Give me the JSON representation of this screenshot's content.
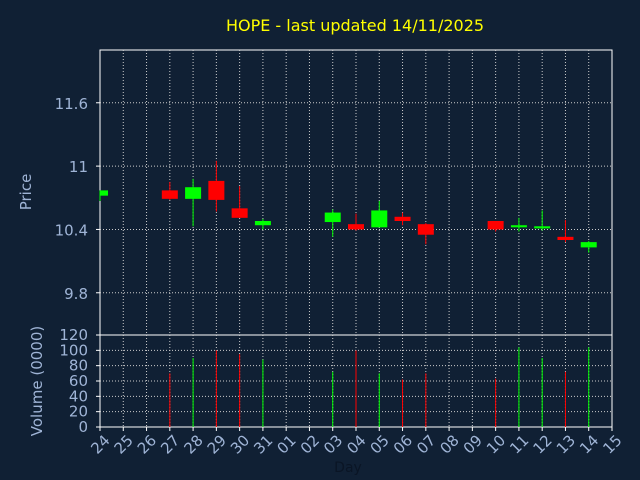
{
  "chart_data": {
    "type": "candlestick",
    "title": "HOPE - last updated 14/11/2025",
    "xlabel": "Day",
    "colors": {
      "background": "#102034",
      "title": "#ffff00",
      "axis_text": "#9fb4d6",
      "up": "#00ff00",
      "down": "#ff0000",
      "grid": "#cccccc"
    },
    "x_ticks": [
      "24",
      "25",
      "26",
      "27",
      "28",
      "29",
      "30",
      "31",
      "01",
      "02",
      "03",
      "04",
      "05",
      "06",
      "07",
      "08",
      "09",
      "10",
      "11",
      "12",
      "13",
      "14",
      "15"
    ],
    "price": {
      "ylabel": "Price",
      "ylim": [
        9.4,
        12.1
      ],
      "ticks": [
        "9.8",
        "10.4",
        "11",
        "11.6"
      ]
    },
    "volume": {
      "ylabel": "Volume (0000)",
      "ylim": [
        0,
        120
      ],
      "ticks": [
        "0",
        "20",
        "40",
        "60",
        "80",
        "100",
        "120"
      ]
    },
    "candles": [
      {
        "day": "24",
        "open": 10.72,
        "high": 10.77,
        "low": 10.67,
        "close": 10.77,
        "volume": 0
      },
      {
        "day": "27",
        "open": 10.77,
        "high": 10.85,
        "low": 10.68,
        "close": 10.69,
        "volume": 70
      },
      {
        "day": "28",
        "open": 10.69,
        "high": 10.88,
        "low": 10.43,
        "close": 10.8,
        "volume": 90
      },
      {
        "day": "29",
        "open": 10.86,
        "high": 11.05,
        "low": 10.57,
        "close": 10.68,
        "volume": 100
      },
      {
        "day": "30",
        "open": 10.6,
        "high": 10.81,
        "low": 10.51,
        "close": 10.51,
        "volume": 95
      },
      {
        "day": "31",
        "open": 10.44,
        "high": 10.5,
        "low": 10.4,
        "close": 10.48,
        "volume": 88
      },
      {
        "day": "03",
        "open": 10.47,
        "high": 10.59,
        "low": 10.33,
        "close": 10.56,
        "volume": 72
      },
      {
        "day": "04",
        "open": 10.45,
        "high": 10.55,
        "low": 10.39,
        "close": 10.4,
        "volume": 100
      },
      {
        "day": "05",
        "open": 10.42,
        "high": 10.67,
        "low": 10.42,
        "close": 10.58,
        "volume": 70
      },
      {
        "day": "06",
        "open": 10.52,
        "high": 10.56,
        "low": 10.44,
        "close": 10.48,
        "volume": 62
      },
      {
        "day": "07",
        "open": 10.45,
        "high": 10.46,
        "low": 10.26,
        "close": 10.35,
        "volume": 70
      },
      {
        "day": "10",
        "open": 10.48,
        "high": 10.48,
        "low": 10.38,
        "close": 10.4,
        "volume": 63
      },
      {
        "day": "11",
        "open": 10.42,
        "high": 10.51,
        "low": 10.38,
        "close": 10.44,
        "volume": 104
      },
      {
        "day": "12",
        "open": 10.41,
        "high": 10.58,
        "low": 10.39,
        "close": 10.43,
        "volume": 90
      },
      {
        "day": "13",
        "open": 10.33,
        "high": 10.49,
        "low": 10.28,
        "close": 10.3,
        "volume": 72
      },
      {
        "day": "14",
        "open": 10.23,
        "high": 10.29,
        "low": 10.18,
        "close": 10.28,
        "volume": 104
      }
    ]
  }
}
